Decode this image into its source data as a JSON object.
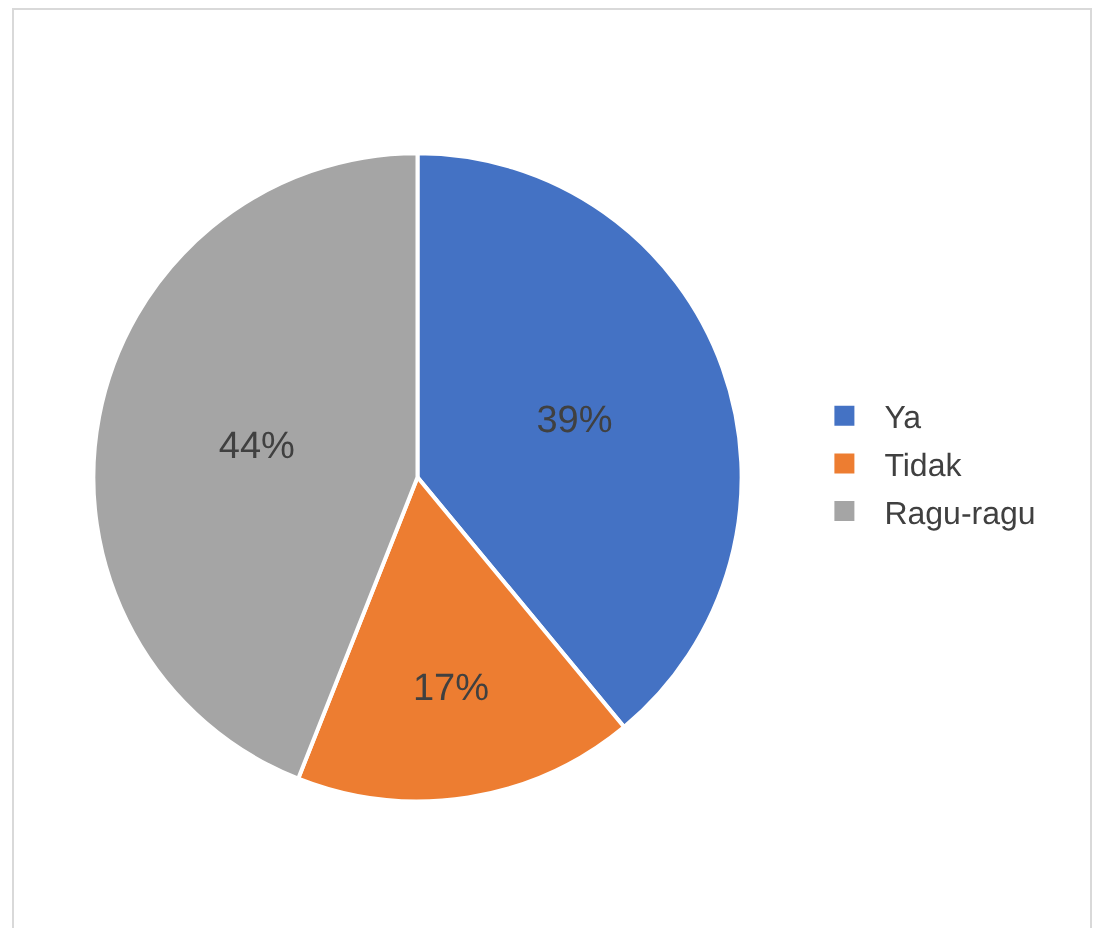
{
  "chart_data": {
    "type": "pie",
    "categories": [
      "Ya",
      "Tidak",
      "Ragu-ragu"
    ],
    "values": [
      39,
      17,
      44
    ],
    "colors": [
      "#4472c4",
      "#ed7d31",
      "#a5a5a5"
    ],
    "value_labels": [
      "39%",
      "17%",
      "44%"
    ],
    "legend": "right"
  }
}
